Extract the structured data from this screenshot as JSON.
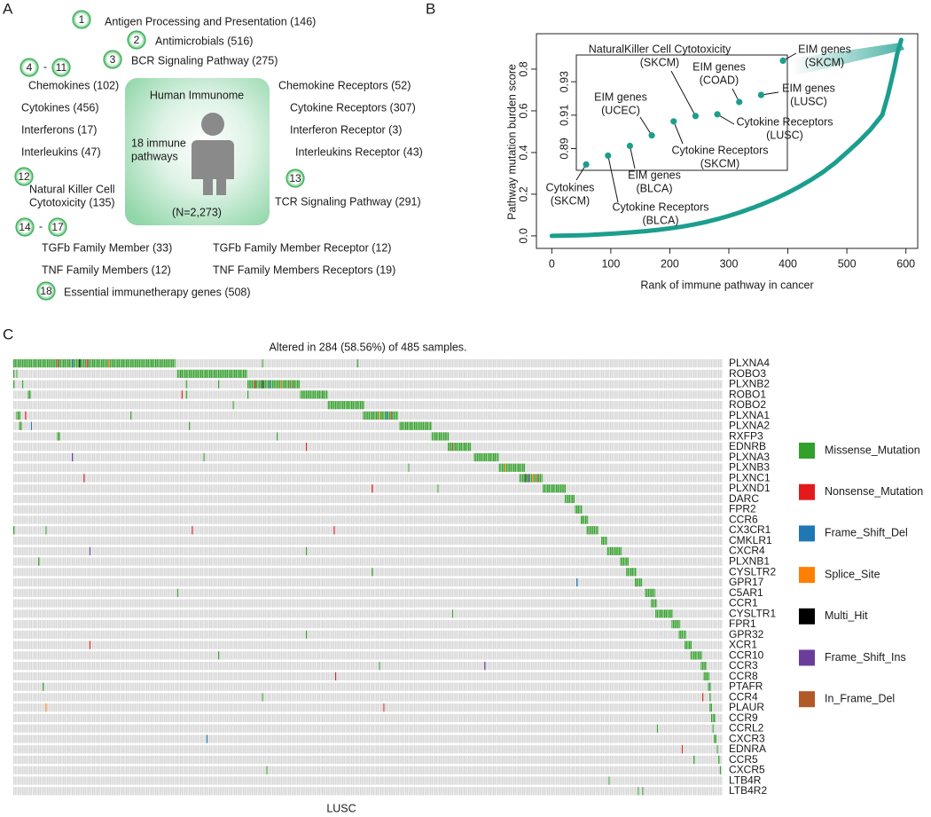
{
  "panel_a": {
    "label": "A",
    "center": {
      "title": "Human Immunome",
      "subtitle": [
        "18 immune",
        "pathways"
      ],
      "total": "(N=2,273)"
    },
    "pathways": [
      "Antigen Processing and Presentation (146)",
      "Antimicrobials (516)",
      "BCR Signaling Pathway (275)",
      "Chemokines (102)",
      "Cytokines (456)",
      "Interferons (17)",
      "Interleukins (47)",
      "Natural Killer Cell",
      "Cytotoxicity (135)",
      "Chemokine Receptors (52)",
      "Cytokine Receptors (307)",
      "Interferon Receptor (3)",
      "Interleukins Receptor (43)",
      "TCR Signaling Pathway (291)",
      "TGFb Family Member (33)",
      "TGFb Family Member Receptor (12)",
      "TNF Family Members (12)",
      "TNF Family Members Receptors (19)",
      "Essential immunetherapy genes (508)"
    ],
    "badges": [
      "1",
      "2",
      "3",
      "4",
      "11",
      "12",
      "13",
      "14",
      "17",
      "18"
    ],
    "dashes": [
      "-",
      "-"
    ]
  },
  "chart_data": [
    {
      "type": "line",
      "panel_label": "B",
      "xlabel": "Rank of immune pathway in cancer",
      "ylabel": "Pathway mutation burden score",
      "x": [
        0,
        20,
        40,
        60,
        80,
        100,
        120,
        140,
        160,
        180,
        200,
        220,
        240,
        260,
        280,
        300,
        320,
        340,
        360,
        380,
        400,
        420,
        440,
        460,
        480,
        500,
        520,
        540,
        560,
        570,
        580,
        585,
        590,
        592
      ],
      "values": [
        0.0,
        0.001,
        0.002,
        0.004,
        0.007,
        0.01,
        0.014,
        0.018,
        0.023,
        0.029,
        0.036,
        0.044,
        0.054,
        0.066,
        0.08,
        0.096,
        0.114,
        0.134,
        0.156,
        0.18,
        0.207,
        0.237,
        0.27,
        0.307,
        0.35,
        0.4,
        0.452,
        0.51,
        0.58,
        0.68,
        0.8,
        0.87,
        0.92,
        0.94
      ],
      "color": "#1b9e8e",
      "xlim": [
        -26,
        620
      ],
      "ylim": [
        -0.06,
        0.97
      ],
      "xticks": [
        0,
        100,
        200,
        300,
        400,
        500,
        600
      ],
      "yticks": [
        {
          "value": 0,
          "label": "0.0"
        },
        0.2,
        0.4,
        0.6,
        0.8
      ],
      "inset": {
        "type": "scatter",
        "x": [
          583,
          584,
          585,
          586,
          587,
          588,
          589,
          590,
          591,
          592
        ],
        "values": [
          0.8805,
          0.8858,
          0.8916,
          0.8979,
          0.9063,
          0.9095,
          0.9105,
          0.9179,
          0.9221,
          0.9426
        ],
        "labels": [
          [
            "Cytokines",
            "(SKCM)"
          ],
          [
            "Cytokine Receptors",
            "(BLCA)"
          ],
          [
            "EIM genes",
            "(BLCA)"
          ],
          [
            "EIM genes",
            "(UCEC)"
          ],
          [
            "Cytokine Receptors",
            "(SKCM)"
          ],
          [
            "NaturalKiller Cell Cytotoxicity",
            "(SKCM)"
          ],
          [
            "Cytokine Receptors",
            "(LUSC)"
          ],
          [
            "EIM genes",
            "(COAD)"
          ],
          [
            "EIM genes",
            "(LUSC)"
          ],
          [
            "EIM genes",
            "(SKCM)"
          ]
        ],
        "xlim": [
          582.55,
          592.2
        ],
        "ylim": [
          0.877,
          0.946
        ],
        "yticks": [
          0.89,
          0.91,
          0.93
        ]
      }
    },
    {
      "type": "oncoprint",
      "panel_label": "C",
      "title": "Altered in 284 (58.56%) of 485 samples.",
      "xlabel": "LUSC",
      "xlim": [
        0,
        485
      ],
      "legend": "right",
      "categories": [
        "PLXNA4",
        "ROBO3",
        "PLXNB2",
        "ROBO1",
        "ROBO2",
        "PLXNA1",
        "PLXNA2",
        "RXFP3",
        "EDNRB",
        "PLXNA3",
        "PLXNB3",
        "PLXNC1",
        "PLXND1",
        "DARC",
        "FPR2",
        "CCR6",
        "CX3CR1",
        "CMKLR1",
        "CXCR4",
        "PLXNB1",
        "CYSLTR2",
        "GPR17",
        "C5AR1",
        "CCR1",
        "CYSLTR1",
        "FPR1",
        "GPR32",
        "XCR1",
        "CCR10",
        "CCR3",
        "CCR8",
        "PTAFR",
        "CCR4",
        "PLAUR",
        "CCR9",
        "CCRL2",
        "CXCR3",
        "EDNRA",
        "CCR5",
        "CXCR5",
        "LTB4R",
        "LTB4R2"
      ],
      "series": [
        {
          "name": "Missense_Mutation",
          "color": "#33a02c",
          "cells": [
            [
              0,
              0,
              110
            ],
            [
              1,
              0,
              0
            ],
            [
              1,
              2,
              2
            ],
            [
              1,
              112,
              159
            ],
            [
              2,
              0,
              0
            ],
            [
              2,
              6,
              6
            ],
            [
              2,
              160,
              195
            ],
            [
              3,
              10,
              11
            ],
            [
              3,
              196,
              214
            ],
            [
              4,
              215,
              239
            ],
            [
              5,
              2,
              4
            ],
            [
              5,
              239,
              262
            ],
            [
              6,
              4,
              5
            ],
            [
              6,
              264,
              285
            ],
            [
              7,
              30,
              31
            ],
            [
              7,
              286,
              297
            ],
            [
              8,
              297,
              312
            ],
            [
              9,
              315,
              331
            ],
            [
              10,
              332,
              349
            ],
            [
              11,
              346,
              361
            ],
            [
              12,
              362,
              377
            ],
            [
              13,
              377,
              383
            ],
            [
              14,
              384,
              388
            ],
            [
              15,
              388,
              392
            ],
            [
              16,
              392,
              399
            ],
            [
              17,
              402,
              405
            ],
            [
              18,
              406,
              415
            ],
            [
              19,
              415,
              420
            ],
            [
              20,
              419,
              425
            ],
            [
              21,
              425,
              429
            ],
            [
              22,
              432,
              438
            ],
            [
              23,
              436,
              439
            ],
            [
              24,
              439,
              450
            ],
            [
              25,
              450,
              455
            ],
            [
              26,
              455,
              459
            ],
            [
              27,
              459,
              463
            ],
            [
              28,
              463,
              470
            ],
            [
              29,
              470,
              473
            ],
            [
              30,
              472,
              475
            ],
            [
              31,
              475,
              476
            ],
            [
              32,
              476,
              476
            ],
            [
              33,
              476,
              477
            ],
            [
              34,
              477,
              479
            ],
            [
              35,
              478,
              478
            ],
            [
              36,
              479,
              480
            ],
            [
              37,
              481,
              481
            ],
            [
              38,
              482,
              482
            ],
            [
              39,
              483,
              483
            ],
            [
              40,
              407,
              407
            ],
            [
              41,
              427,
              427
            ],
            [
              0,
              170,
              170
            ],
            [
              0,
              235,
              235
            ],
            [
              2,
              118,
              118
            ],
            [
              2,
              140,
              140
            ],
            [
              3,
              160,
              160
            ],
            [
              3,
              118,
              118
            ],
            [
              4,
              150,
              150
            ],
            [
              5,
              80,
              80
            ],
            [
              6,
              120,
              120
            ],
            [
              7,
              180,
              180
            ],
            [
              9,
              130,
              130
            ],
            [
              10,
              270,
              270
            ],
            [
              12,
              290,
              290
            ],
            [
              16,
              0,
              0
            ],
            [
              16,
              22,
              22
            ],
            [
              18,
              200,
              200
            ],
            [
              19,
              17,
              17
            ],
            [
              20,
              245,
              245
            ],
            [
              22,
              112,
              112
            ],
            [
              24,
              300,
              300
            ],
            [
              26,
              200,
              200
            ],
            [
              28,
              140,
              140
            ],
            [
              29,
              250,
              250
            ],
            [
              31,
              20,
              20
            ],
            [
              32,
              170,
              170
            ],
            [
              35,
              440,
              440
            ],
            [
              38,
              465,
              465
            ],
            [
              39,
              173,
              173
            ],
            [
              41,
              430,
              430
            ]
          ]
        },
        {
          "name": "Nonsense_Mutation",
          "color": "#e31a1c",
          "cells": [
            [
              0,
              30,
              30
            ],
            [
              0,
              50,
              50
            ],
            [
              2,
              165,
              165
            ],
            [
              3,
              115,
              115
            ],
            [
              5,
              8,
              8
            ],
            [
              8,
              200,
              200
            ],
            [
              11,
              48,
              48
            ],
            [
              12,
              245,
              245
            ],
            [
              16,
              122,
              122
            ],
            [
              16,
              219,
              219
            ],
            [
              27,
              52,
              52
            ],
            [
              30,
              220,
              220
            ],
            [
              32,
              471,
              471
            ],
            [
              33,
              253,
              253
            ],
            [
              37,
              457,
              457
            ]
          ]
        },
        {
          "name": "Frame_Shift_Del",
          "color": "#1f78b4",
          "cells": [
            [
              0,
              40,
              40
            ],
            [
              2,
              175,
              175
            ],
            [
              5,
              255,
              255
            ],
            [
              6,
              12,
              12
            ],
            [
              21,
              385,
              385
            ],
            [
              36,
              132,
              132
            ]
          ]
        },
        {
          "name": "Splice_Site",
          "color": "#ff7f00",
          "cells": [
            [
              0,
              65,
              65
            ],
            [
              2,
              183,
              183
            ],
            [
              5,
              250,
              250
            ],
            [
              10,
              336,
              336
            ],
            [
              33,
              22,
              22
            ],
            [
              11,
              355,
              355
            ]
          ]
        },
        {
          "name": "Multi_Hit",
          "color": "#000000",
          "cells": [
            [
              0,
              45,
              45
            ],
            [
              2,
              170,
              170
            ],
            [
              11,
              350,
              350
            ]
          ]
        },
        {
          "name": "Frame_Shift_Ins",
          "color": "#6a3d9a",
          "cells": [
            [
              9,
              40,
              40
            ],
            [
              18,
              52,
              52
            ],
            [
              29,
              322,
              322
            ],
            [
              11,
              352,
              352
            ]
          ]
        },
        {
          "name": "In_Frame_Del",
          "color": "#b15928",
          "cells": [
            [
              2,
              190,
              190
            ],
            [
              5,
              258,
              258
            ],
            [
              8,
              300,
              300
            ],
            [
              11,
              358,
              358
            ]
          ]
        }
      ]
    }
  ]
}
